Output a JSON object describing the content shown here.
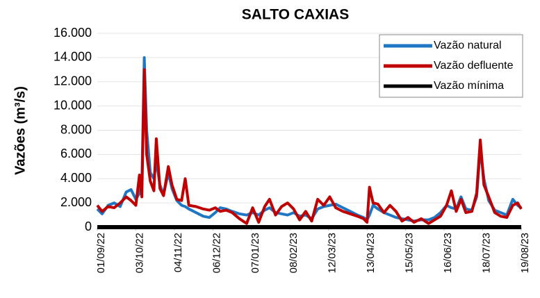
{
  "chart_data": {
    "type": "line",
    "title": "SALTO CAXIAS",
    "y_label": "Vazões (m³/s)",
    "x": [
      "01/09/22",
      "05/09/22",
      "10/09/22",
      "15/09/22",
      "20/09/22",
      "25/09/22",
      "29/09/22",
      "03/10/22",
      "06/10/22",
      "08/10/22",
      "10/10/22",
      "12/10/22",
      "15/10/22",
      "18/10/22",
      "20/10/22",
      "23/10/22",
      "26/10/22",
      "30/10/22",
      "02/11/22",
      "06/11/22",
      "10/11/22",
      "13/11/22",
      "16/11/22",
      "22/11/22",
      "28/11/22",
      "03/12/22",
      "08/12/22",
      "12/12/22",
      "17/12/22",
      "22/12/22",
      "28/12/22",
      "03/01/23",
      "08/01/23",
      "13/01/23",
      "18/01/23",
      "22/01/23",
      "27/01/23",
      "01/02/23",
      "06/02/23",
      "11/02/23",
      "16/02/23",
      "21/02/23",
      "26/02/23",
      "03/03/23",
      "08/03/23",
      "13/03/23",
      "18/03/23",
      "24/03/23",
      "30/03/23",
      "05/04/23",
      "10/04/23",
      "13/04/23",
      "15/04/23",
      "18/04/23",
      "22/04/23",
      "27/04/23",
      "02/05/23",
      "07/05/23",
      "12/05/23",
      "17/05/23",
      "22/05/23",
      "28/05/23",
      "03/06/23",
      "08/06/23",
      "13/06/23",
      "18/06/23",
      "22/06/23",
      "26/06/23",
      "30/06/23",
      "04/07/23",
      "09/07/23",
      "13/07/23",
      "16/07/23",
      "19/07/23",
      "23/07/23",
      "28/07/23",
      "02/08/23",
      "07/08/23",
      "12/08/23",
      "16/08/23",
      "19/08/23"
    ],
    "series": [
      {
        "name": "Vazão natural",
        "color": "#1f77c4",
        "values": [
          1500,
          1100,
          1800,
          2000,
          1700,
          2900,
          3100,
          2300,
          2800,
          3500,
          14000,
          8000,
          4500,
          4000,
          5500,
          3500,
          2700,
          4500,
          3200,
          2200,
          1800,
          1700,
          1500,
          1200,
          900,
          800,
          1200,
          1600,
          1500,
          1300,
          1100,
          1000,
          1200,
          1000,
          1400,
          1600,
          1200,
          1100,
          1000,
          1200,
          900,
          1000,
          700,
          1500,
          1700,
          1800,
          1900,
          1600,
          1300,
          1000,
          800,
          600,
          1000,
          1800,
          1500,
          1200,
          1000,
          800,
          700,
          600,
          500,
          600,
          600,
          800,
          1200,
          1800,
          1600,
          1500,
          2500,
          1500,
          1400,
          2500,
          6500,
          4000,
          2200,
          1400,
          1200,
          1000,
          2300,
          1800,
          1600
        ]
      },
      {
        "name": "Vazão defluente",
        "color": "#c00000",
        "values": [
          1800,
          1300,
          1700,
          1600,
          2000,
          2500,
          2200,
          1800,
          4300,
          2500,
          13000,
          6000,
          3800,
          3000,
          7300,
          3200,
          2600,
          5000,
          3500,
          2300,
          2200,
          4000,
          1800,
          1700,
          1500,
          1400,
          1600,
          1300,
          1400,
          1200,
          700,
          300,
          1600,
          400,
          1700,
          2300,
          1000,
          1700,
          2000,
          1500,
          600,
          1300,
          500,
          2300,
          1800,
          2500,
          1600,
          1300,
          1100,
          900,
          700,
          400,
          3300,
          2000,
          1900,
          1200,
          1800,
          1300,
          500,
          800,
          400,
          700,
          300,
          600,
          900,
          1800,
          3000,
          1300,
          2300,
          1200,
          1300,
          2800,
          7200,
          3500,
          2500,
          1200,
          900,
          800,
          1800,
          2000,
          1500
        ]
      },
      {
        "name": "Vazão mínima",
        "color": "#000000",
        "values": [
          0,
          0,
          0,
          0,
          0,
          0,
          0,
          0,
          0,
          0,
          0,
          0,
          0,
          0,
          0,
          0,
          0,
          0,
          0,
          0,
          0,
          0,
          0,
          0,
          0,
          0,
          0,
          0,
          0,
          0,
          0,
          0,
          0,
          0,
          0,
          0,
          0,
          0,
          0,
          0,
          0,
          0,
          0,
          0,
          0,
          0,
          0,
          0,
          0,
          0,
          0,
          0,
          0,
          0,
          0,
          0,
          0,
          0,
          0,
          0,
          0,
          0,
          0,
          0,
          0,
          0,
          0,
          0,
          0,
          0,
          0,
          0,
          0,
          0,
          0,
          0,
          0,
          0,
          0,
          0,
          0
        ]
      }
    ],
    "xlim": [
      "01/09/22",
      "19/08/23"
    ],
    "xticks": [
      "01/09/22",
      "03/10/22",
      "04/11/22",
      "06/12/22",
      "07/01/23",
      "08/02/23",
      "12/03/23",
      "13/04/23",
      "15/05/23",
      "16/06/23",
      "18/07/23",
      "19/08/23"
    ],
    "ylim": [
      0,
      16000
    ],
    "yticks": [
      0,
      {
        "value": 2000,
        "label": "2.000"
      },
      {
        "value": 4000,
        "label": "4.000"
      },
      {
        "value": 6000,
        "label": "6.000"
      },
      {
        "value": 8000,
        "label": "8.000"
      },
      {
        "value": 10000,
        "label": "10.000"
      },
      {
        "value": 12000,
        "label": "12.000"
      },
      {
        "value": 14000,
        "label": "14.000"
      },
      {
        "value": 16000,
        "label": "16.000"
      }
    ],
    "grid": true,
    "legend": "top-right"
  }
}
